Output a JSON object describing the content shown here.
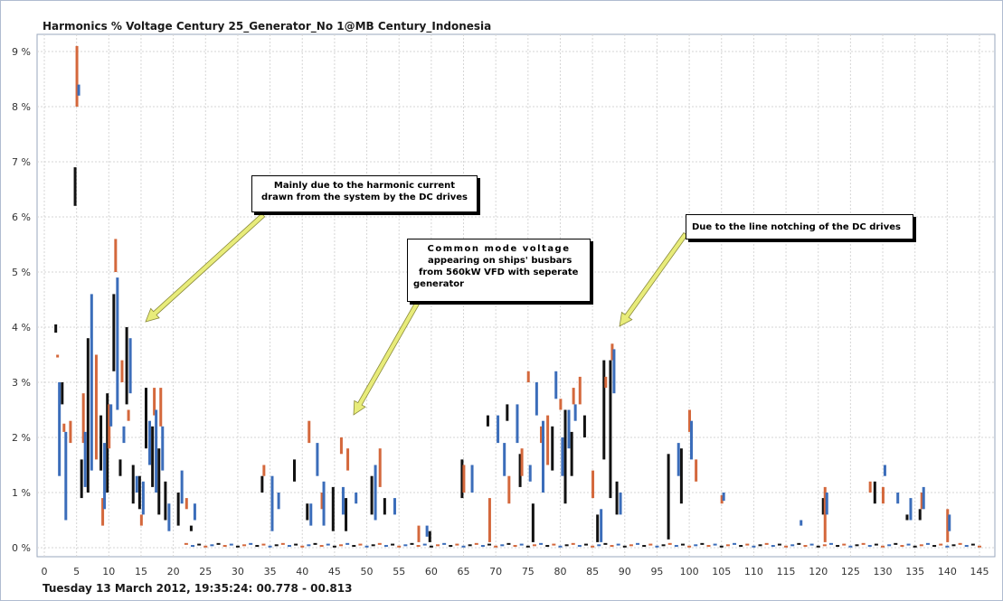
{
  "chart_title": "Harmonics % Voltage Century 25_Generator_No 1@MB Century_Indonesia",
  "footer": "Tuesday 13 March 2012, 19:35:24: 00.778 - 00.813",
  "annotations": {
    "drives_current": {
      "line1": "Mainly due to the harmonic current",
      "line2": "drawn from the system by the DC drives"
    },
    "common_mode": {
      "line1": "Common mode voltage",
      "line2": "appearing on ships' busbars",
      "line3": "from 560kW VFD with seperate",
      "line4": "generator"
    },
    "line_notching": {
      "line1": "Due to the line notching of the DC drives"
    }
  },
  "colors": {
    "phase_black": "#111111",
    "phase_orange": "#d4683c",
    "phase_blue": "#3b6dba",
    "grid": "#d6d6d6",
    "arrow": "#e8ec7a"
  },
  "chart_data": {
    "type": "bar",
    "title": "Harmonics % Voltage Century 25_Generator_No 1@MB Century_Indonesia",
    "xlabel": "",
    "ylabel": "",
    "xlim": [
      0,
      146
    ],
    "ylim": [
      -0.1,
      9.3
    ],
    "x_ticks": [
      0,
      5,
      10,
      15,
      20,
      25,
      30,
      35,
      40,
      45,
      50,
      55,
      60,
      65,
      70,
      75,
      80,
      85,
      90,
      95,
      100,
      105,
      110,
      115,
      120,
      125,
      130,
      135,
      140,
      145
    ],
    "y_ticks": [
      {
        "value": 0,
        "label": "0 %"
      },
      {
        "value": 1,
        "label": "1 %"
      },
      {
        "value": 2,
        "label": "2 %"
      },
      {
        "value": 3,
        "label": "3 %"
      },
      {
        "value": 4,
        "label": "4 %"
      },
      {
        "value": 5,
        "label": "5 %"
      },
      {
        "value": 6,
        "label": "6 %"
      },
      {
        "value": 7,
        "label": "7 %"
      },
      {
        "value": 8,
        "label": "8 %"
      },
      {
        "value": 9,
        "label": "9 %"
      }
    ],
    "grid": true,
    "legend": "none",
    "series": [
      {
        "color_key": "phase_black",
        "ranges": [
          [
            2,
            3.9,
            4.05
          ],
          [
            3,
            2.6,
            3.0
          ],
          [
            5,
            6.2,
            6.9
          ],
          [
            6,
            0.9,
            1.6
          ],
          [
            7,
            1.0,
            3.8
          ],
          [
            9,
            1.4,
            2.4
          ],
          [
            10,
            1.0,
            2.8
          ],
          [
            11,
            3.2,
            4.6
          ],
          [
            12,
            1.3,
            1.6
          ],
          [
            13,
            2.6,
            4.0
          ],
          [
            14,
            0.8,
            1.5
          ],
          [
            15,
            0.7,
            1.3
          ],
          [
            16,
            1.8,
            2.9
          ],
          [
            17,
            1.1,
            2.2
          ],
          [
            18,
            0.6,
            1.8
          ],
          [
            19,
            0.5,
            1.2
          ],
          [
            21,
            0.4,
            1.0
          ],
          [
            23,
            0.3,
            0.4
          ],
          [
            34,
            1.0,
            1.3
          ],
          [
            39,
            1.2,
            1.6
          ],
          [
            41,
            0.5,
            0.8
          ],
          [
            45,
            0.3,
            1.1
          ],
          [
            47,
            0.3,
            0.9
          ],
          [
            51,
            0.6,
            1.3
          ],
          [
            53,
            0.6,
            0.9
          ],
          [
            60,
            0.1,
            0.3
          ],
          [
            65,
            0.9,
            1.6
          ],
          [
            69,
            2.2,
            2.4
          ],
          [
            72,
            2.3,
            2.6
          ],
          [
            74,
            1.1,
            1.7
          ],
          [
            76,
            0.1,
            0.8
          ],
          [
            79,
            1.4,
            2.2
          ],
          [
            81,
            0.8,
            2.5
          ],
          [
            82,
            1.3,
            2.1
          ],
          [
            84,
            2.0,
            2.4
          ],
          [
            86,
            0.1,
            0.6
          ],
          [
            87,
            1.6,
            3.4
          ],
          [
            88,
            0.9,
            3.4
          ],
          [
            89,
            0.6,
            1.2
          ],
          [
            97,
            0.15,
            1.7
          ],
          [
            99,
            0.8,
            1.8
          ],
          [
            121,
            0.6,
            0.9
          ],
          [
            129,
            0.8,
            1.2
          ],
          [
            134,
            0.5,
            0.6
          ],
          [
            136,
            0.5,
            0.7
          ]
        ]
      },
      {
        "color_key": "phase_orange",
        "ranges": [
          [
            2,
            3.45,
            3.5
          ],
          [
            3,
            2.1,
            2.25
          ],
          [
            4,
            1.9,
            2.3
          ],
          [
            5,
            8.0,
            9.1
          ],
          [
            6,
            1.9,
            2.8
          ],
          [
            8,
            1.6,
            3.5
          ],
          [
            9,
            0.4,
            0.9
          ],
          [
            10,
            1.8,
            2.6
          ],
          [
            11,
            5.0,
            5.6
          ],
          [
            12,
            3.0,
            3.4
          ],
          [
            13,
            2.3,
            2.5
          ],
          [
            15,
            0.4,
            0.6
          ],
          [
            17,
            2.4,
            2.9
          ],
          [
            18,
            2.2,
            2.9
          ],
          [
            22,
            0.7,
            0.9
          ],
          [
            34,
            1.3,
            1.5
          ],
          [
            41,
            1.9,
            2.3
          ],
          [
            43,
            0.7,
            1.0
          ],
          [
            46,
            1.7,
            2.0
          ],
          [
            47,
            1.4,
            1.8
          ],
          [
            52,
            1.1,
            1.8
          ],
          [
            58,
            0.1,
            0.4
          ],
          [
            65,
            1.0,
            1.5
          ],
          [
            69,
            0.1,
            0.9
          ],
          [
            72,
            0.8,
            1.3
          ],
          [
            74,
            1.3,
            1.8
          ],
          [
            75,
            3.0,
            3.2
          ],
          [
            77,
            1.9,
            2.2
          ],
          [
            78,
            1.5,
            2.4
          ],
          [
            80,
            2.5,
            2.7
          ],
          [
            82,
            2.6,
            2.9
          ],
          [
            83,
            2.6,
            3.1
          ],
          [
            85,
            0.9,
            1.4
          ],
          [
            87,
            2.9,
            3.1
          ],
          [
            88,
            3.4,
            3.7
          ],
          [
            100,
            2.1,
            2.5
          ],
          [
            101,
            1.2,
            1.6
          ],
          [
            105,
            0.8,
            0.95
          ],
          [
            121,
            0.1,
            1.1
          ],
          [
            128,
            1.0,
            1.2
          ],
          [
            130,
            0.8,
            1.1
          ],
          [
            136,
            0.7,
            1.0
          ],
          [
            140,
            0.1,
            0.7
          ]
        ]
      },
      {
        "color_key": "phase_blue",
        "ranges": [
          [
            2,
            1.3,
            3.0
          ],
          [
            3,
            0.5,
            2.1
          ],
          [
            5,
            8.2,
            8.4
          ],
          [
            6,
            1.1,
            2.1
          ],
          [
            7,
            1.4,
            4.6
          ],
          [
            9,
            0.7,
            1.9
          ],
          [
            10,
            2.2,
            2.6
          ],
          [
            11,
            2.5,
            4.9
          ],
          [
            12,
            1.9,
            2.2
          ],
          [
            13,
            2.8,
            3.8
          ],
          [
            14,
            1.0,
            1.3
          ],
          [
            15,
            0.6,
            1.2
          ],
          [
            16,
            1.5,
            2.3
          ],
          [
            17,
            1.0,
            2.5
          ],
          [
            18,
            1.4,
            2.2
          ],
          [
            19,
            0.3,
            0.8
          ],
          [
            21,
            0.8,
            1.4
          ],
          [
            23,
            0.5,
            0.8
          ],
          [
            35,
            0.3,
            1.3
          ],
          [
            36,
            0.7,
            1.0
          ],
          [
            41,
            0.4,
            0.8
          ],
          [
            42,
            1.3,
            1.9
          ],
          [
            43,
            0.4,
            1.2
          ],
          [
            46,
            0.6,
            1.1
          ],
          [
            48,
            0.8,
            1.0
          ],
          [
            51,
            0.5,
            1.5
          ],
          [
            54,
            0.6,
            0.9
          ],
          [
            59,
            0.2,
            0.4
          ],
          [
            66,
            1.0,
            1.5
          ],
          [
            70,
            1.9,
            2.4
          ],
          [
            71,
            1.3,
            1.9
          ],
          [
            73,
            1.9,
            2.6
          ],
          [
            75,
            1.2,
            1.5
          ],
          [
            76,
            2.4,
            3.0
          ],
          [
            77,
            1.0,
            2.3
          ],
          [
            79,
            2.7,
            3.2
          ],
          [
            80,
            1.3,
            2.0
          ],
          [
            81,
            1.8,
            2.5
          ],
          [
            82,
            2.3,
            2.6
          ],
          [
            86,
            0.1,
            0.7
          ],
          [
            88,
            2.8,
            3.6
          ],
          [
            89,
            0.6,
            1.0
          ],
          [
            98,
            1.3,
            1.9
          ],
          [
            100,
            1.6,
            2.3
          ],
          [
            105,
            0.85,
            1.0
          ],
          [
            117,
            0.4,
            0.5
          ],
          [
            121,
            0.6,
            1.0
          ],
          [
            130,
            1.3,
            1.5
          ],
          [
            132,
            0.8,
            1.0
          ],
          [
            134,
            0.5,
            0.9
          ],
          [
            136,
            0.7,
            1.1
          ],
          [
            140,
            0.3,
            0.6
          ]
        ]
      }
    ]
  }
}
